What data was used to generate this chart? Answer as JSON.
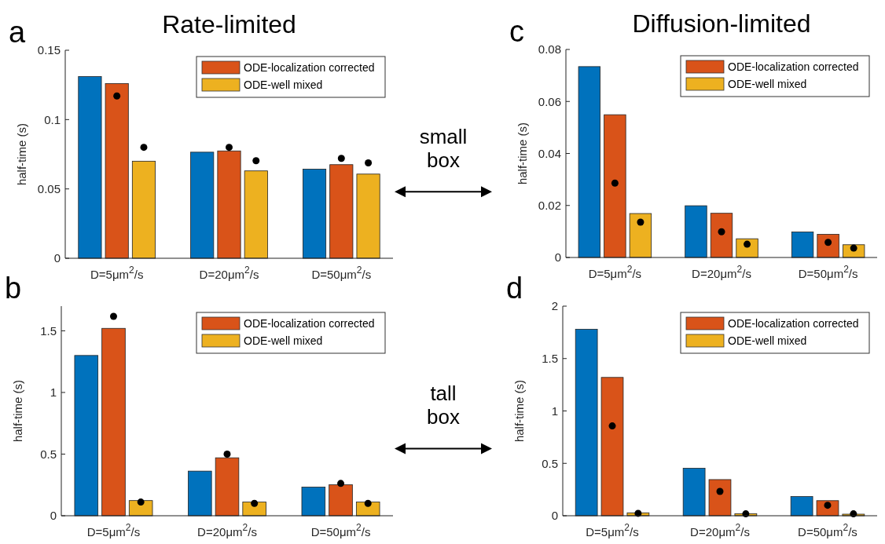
{
  "chart_data": [
    {
      "type": "bar",
      "title": "Rate-limited",
      "ylabel": "half-time (s)",
      "categories": [
        "D=5μm$^{2}$/s",
        "D=20μm$^{2}$/s",
        "D=50μm$^{2}$/s"
      ],
      "ylim": [
        0,
        0.15
      ],
      "yticks": [
        0,
        0.05,
        0.1,
        0.15
      ],
      "legend": "top right",
      "annotations": [
        "a",
        "small box"
      ],
      "series": [
        {
          "color": "#0072bd",
          "values": [
            0.131,
            0.0765,
            0.0643
          ]
        },
        {
          "name": "ODE-localization corrected",
          "color": "#d95319",
          "values": [
            0.126,
            0.0774,
            0.0675
          ]
        },
        {
          "name": "ODE-well mixed",
          "color": "#edb120",
          "values": [
            0.07,
            0.063,
            0.0607
          ]
        },
        {
          "type": "scatter",
          "color": "#000000",
          "x": [
            "D=5μm$^{2}$/s",
            "D=20μm$^{2}$/s",
            "D=50μm$^{2}$/s"
          ],
          "values": [
            0.117,
            0.08,
            0.072
          ]
        },
        {
          "type": "scatter",
          "color": "#000000",
          "x": [
            "D=5μm$^{2}$/s",
            "D=20μm$^{2}$/s",
            "D=50μm$^{2}$/s"
          ],
          "values": [
            0.08,
            0.0703,
            0.0688
          ]
        }
      ]
    },
    {
      "type": "bar",
      "title": "Diffusion-limited",
      "ylabel": "half-time (s)",
      "categories": [
        "D=5μm$^{2}$/s",
        "D=20μm$^{2}$/s",
        "D=50μm$^{2}$/s"
      ],
      "ylim": [
        0,
        0.08
      ],
      "yticks": [
        0,
        0.02,
        0.04,
        0.06,
        0.08
      ],
      "legend": "top right",
      "annotations": [
        "c"
      ],
      "series": [
        {
          "color": "#0072bd",
          "values": [
            0.0734,
            0.0199,
            0.0098
          ]
        },
        {
          "name": "ODE-localization corrected",
          "color": "#d95319",
          "values": [
            0.0549,
            0.017,
            0.0089
          ]
        },
        {
          "name": "ODE-well mixed",
          "color": "#edb120",
          "values": [
            0.0169,
            0.0072,
            0.0049
          ]
        },
        {
          "type": "scatter",
          "color": "#000000",
          "x": [
            "D=5μm$^{2}$/s",
            "D=20μm$^{2}$/s",
            "D=50μm$^{2}$/s"
          ],
          "values": [
            0.0286,
            0.0099,
            0.0058
          ]
        },
        {
          "type": "scatter",
          "color": "#000000",
          "x": [
            "D=5μm$^{2}$/s",
            "D=20μm$^{2}$/s",
            "D=50μm$^{2}$/s"
          ],
          "values": [
            0.0136,
            0.0051,
            0.0036
          ]
        }
      ]
    },
    {
      "type": "bar",
      "ylabel": "half-time (s)",
      "categories": [
        "D=5μm$^{2}$/s",
        "D=20μm$^{2}$/s",
        "D=50μm$^{2}$/s"
      ],
      "ylim": [
        0,
        1.7
      ],
      "yticks": [
        0,
        0.5,
        1,
        1.5
      ],
      "legend": "top right",
      "annotations": [
        "b",
        "tall box"
      ],
      "series": [
        {
          "color": "#0072bd",
          "values": [
            1.3,
            0.362,
            0.232
          ]
        },
        {
          "name": "ODE-localization corrected",
          "color": "#d95319",
          "values": [
            1.52,
            0.47,
            0.251
          ]
        },
        {
          "name": "ODE-well mixed",
          "color": "#edb120",
          "values": [
            0.123,
            0.111,
            0.111
          ]
        },
        {
          "type": "scatter",
          "color": "#000000",
          "x": [
            "D=5μm$^{2}$/s",
            "D=20μm$^{2}$/s",
            "D=50μm$^{2}$/s"
          ],
          "values": [
            1.617,
            0.5,
            0.262
          ]
        },
        {
          "type": "scatter",
          "color": "#000000",
          "x": [
            "D=5μm$^{2}$/s",
            "D=20μm$^{2}$/s",
            "D=50μm$^{2}$/s"
          ],
          "values": [
            0.111,
            0.1,
            0.1
          ]
        }
      ]
    },
    {
      "type": "bar",
      "ylabel": "half-time (s)",
      "categories": [
        "D=5μm$^{2}$/s",
        "D=20μm$^{2}$/s",
        "D=50μm$^{2}$/s"
      ],
      "ylim": [
        0,
        2
      ],
      "yticks": [
        0,
        0.5,
        1,
        1.5,
        2
      ],
      "legend": "top right",
      "annotations": [
        "d"
      ],
      "series": [
        {
          "color": "#0072bd",
          "values": [
            1.78,
            0.453,
            0.183
          ]
        },
        {
          "name": "ODE-localization corrected",
          "color": "#d95319",
          "values": [
            1.32,
            0.345,
            0.144
          ]
        },
        {
          "name": "ODE-well mixed",
          "color": "#edb120",
          "values": [
            0.028,
            0.02,
            0.015
          ]
        },
        {
          "type": "scatter",
          "color": "#000000",
          "x": [
            "D=5μm$^{2}$/s",
            "D=20μm$^{2}$/s",
            "D=50μm$^{2}$/s"
          ],
          "values": [
            0.857,
            0.232,
            0.1
          ]
        },
        {
          "type": "scatter",
          "color": "#000000",
          "x": [
            "D=5μm$^{2}$/s",
            "D=20μm$^{2}$/s",
            "D=50μm$^{2}$/s"
          ],
          "values": [
            0.023,
            0.018,
            0.018
          ]
        }
      ]
    }
  ]
}
